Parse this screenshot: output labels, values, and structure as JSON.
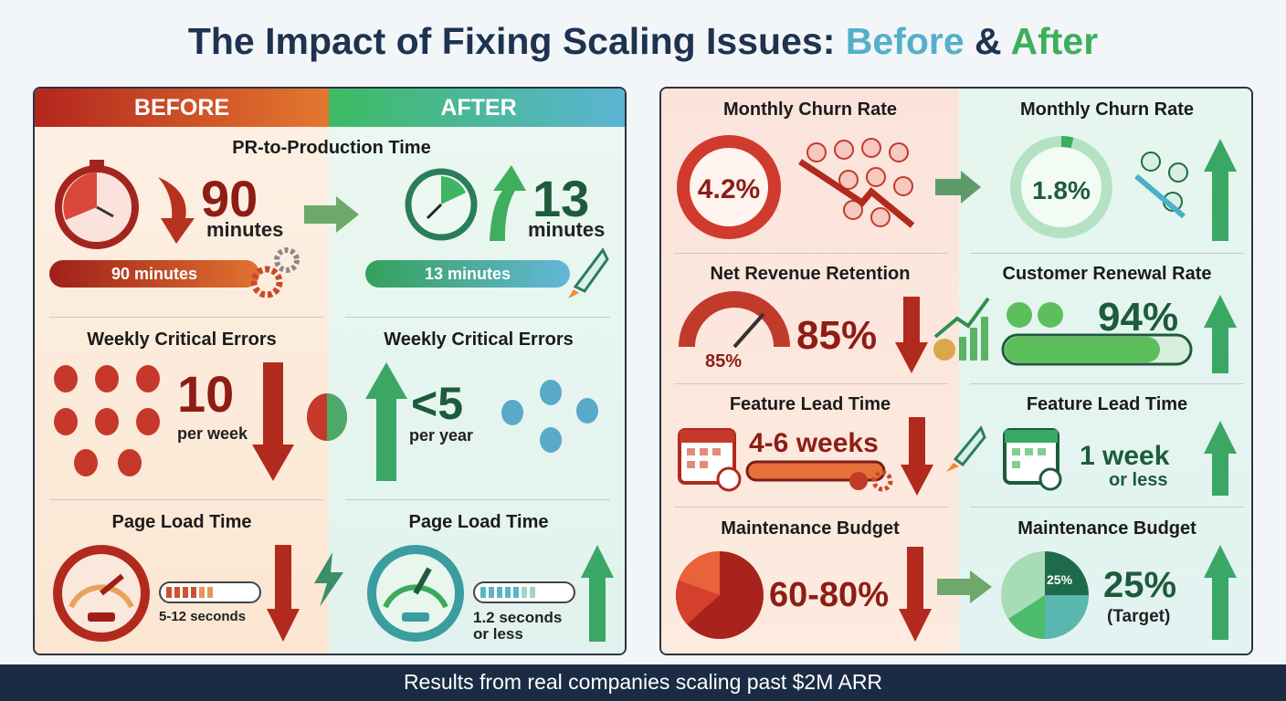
{
  "title": {
    "main": "The Impact of Fixing Scaling Issues: ",
    "before": "Before",
    "amp": " & ",
    "after": "After"
  },
  "colors": {
    "before": "#c8412c",
    "after": "#3dae5c",
    "navy": "#1c2b44"
  },
  "left_panel": {
    "before_header": "BEFORE",
    "after_header": "AFTER",
    "pr": {
      "title": "PR-to-Production Time",
      "before_value": "90",
      "before_unit": "minutes",
      "before_bar": "90 minutes",
      "after_value": "13",
      "after_unit": "minutes",
      "after_bar": "13 minutes"
    },
    "errors": {
      "before_title": "Weekly Critical Errors",
      "before_value": "10",
      "before_unit": "per week",
      "after_title": "Weekly Critical Errors",
      "after_value": "<5",
      "after_unit": "per year"
    },
    "load": {
      "before_title": "Page Load Time",
      "before_value": "5-12 seconds",
      "after_title": "Page Load Time",
      "after_value_1": "1.2 seconds",
      "after_value_2": "or less"
    }
  },
  "right_panel": {
    "churn": {
      "before_title": "Monthly Churn Rate",
      "before_value": "4.2%",
      "after_title": "Monthly Churn Rate",
      "after_value": "1.8%"
    },
    "retention": {
      "before_title": "Net Revenue Retention",
      "before_value": "85%",
      "before_gauge": "85%",
      "after_title": "Customer Renewal Rate",
      "after_value": "94%"
    },
    "lead": {
      "before_title": "Feature Lead Time",
      "before_value": "4-6 weeks",
      "after_title": "Feature Lead Time",
      "after_value_1": "1 week",
      "after_value_2": "or less"
    },
    "budget": {
      "before_title": "Maintenance Budget",
      "before_value": "60-80%",
      "after_title": "Maintenance Budget",
      "after_value": "25%",
      "after_note": "(Target)",
      "after_pie_label": "25%"
    }
  },
  "footer": "Results from real companies scaling past $2M ARR"
}
